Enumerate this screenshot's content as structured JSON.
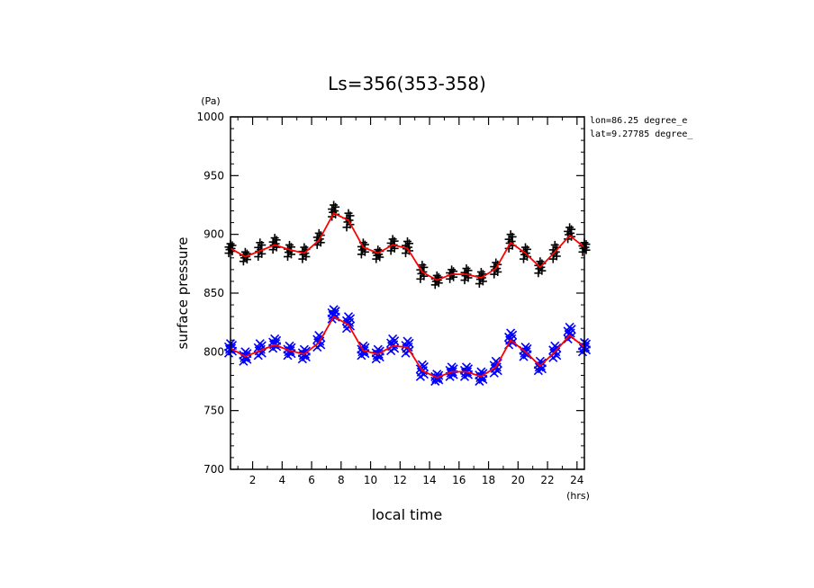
{
  "chart_data": {
    "type": "line",
    "title": "Ls=356(353-358)",
    "ylabel": "surface pressure",
    "xlabel": "local time",
    "yunit": "(Pa)",
    "xunit": "(hrs)",
    "annotations": [
      "lon=86.25 degree_e",
      "lat=9.27785 degree_"
    ],
    "ylim": [
      700,
      1000
    ],
    "xlim": [
      0.5,
      24.5
    ],
    "yticks": [
      700,
      750,
      800,
      850,
      900,
      950,
      1000
    ],
    "xticks": [
      2,
      4,
      6,
      8,
      10,
      12,
      14,
      16,
      18,
      20,
      22,
      24
    ],
    "grid": false,
    "legend": "none",
    "colors": {
      "upper_markers": "#000000",
      "lower_markers": "#0000ff",
      "fit_line": "#ff0000"
    },
    "series": [
      {
        "marker": "plus",
        "x": [
          0.5,
          1.5,
          2.5,
          3.5,
          4.5,
          5.5,
          6.5,
          7.5,
          8.5,
          9.5,
          10.5,
          11.5,
          12.5,
          13.5,
          14.5,
          15.5,
          16.5,
          17.5,
          18.5,
          19.5,
          20.5,
          21.5,
          22.5,
          23.5,
          24.5
        ],
        "mean": [
          888,
          881,
          887,
          892,
          886,
          884,
          896,
          920,
          912,
          888,
          883,
          891,
          889,
          868,
          861,
          866,
          866,
          863,
          871,
          894,
          884,
          872,
          885,
          901,
          889
        ],
        "spread": [
          4,
          4,
          6,
          5,
          5,
          5,
          5,
          5,
          6,
          5,
          4,
          5,
          5,
          6,
          4,
          4,
          5,
          5,
          5,
          6,
          5,
          5,
          6,
          5,
          4
        ],
        "line": [
          888,
          881,
          886,
          891,
          887,
          884,
          895,
          918,
          912,
          889,
          884,
          891,
          888,
          868,
          861,
          866,
          866,
          863,
          871,
          893,
          884,
          872,
          885,
          899,
          889
        ]
      },
      {
        "marker": "x",
        "x": [
          0.5,
          1.5,
          2.5,
          3.5,
          4.5,
          5.5,
          6.5,
          7.5,
          8.5,
          9.5,
          10.5,
          11.5,
          12.5,
          13.5,
          14.5,
          15.5,
          16.5,
          17.5,
          18.5,
          19.5,
          20.5,
          21.5,
          22.5,
          23.5,
          24.5
        ],
        "mean": [
          803,
          796,
          802,
          807,
          801,
          798,
          809,
          832,
          825,
          801,
          798,
          806,
          804,
          784,
          778,
          783,
          783,
          779,
          787,
          811,
          800,
          788,
          800,
          816,
          804
        ],
        "spread": [
          4,
          4,
          5,
          4,
          4,
          4,
          5,
          4,
          5,
          4,
          4,
          5,
          5,
          5,
          3,
          4,
          4,
          4,
          5,
          5,
          4,
          4,
          5,
          5,
          4
        ],
        "line": [
          803,
          796,
          801,
          806,
          801,
          798,
          808,
          830,
          823,
          801,
          798,
          805,
          804,
          784,
          778,
          783,
          783,
          779,
          787,
          810,
          800,
          788,
          800,
          814,
          804
        ]
      }
    ]
  }
}
